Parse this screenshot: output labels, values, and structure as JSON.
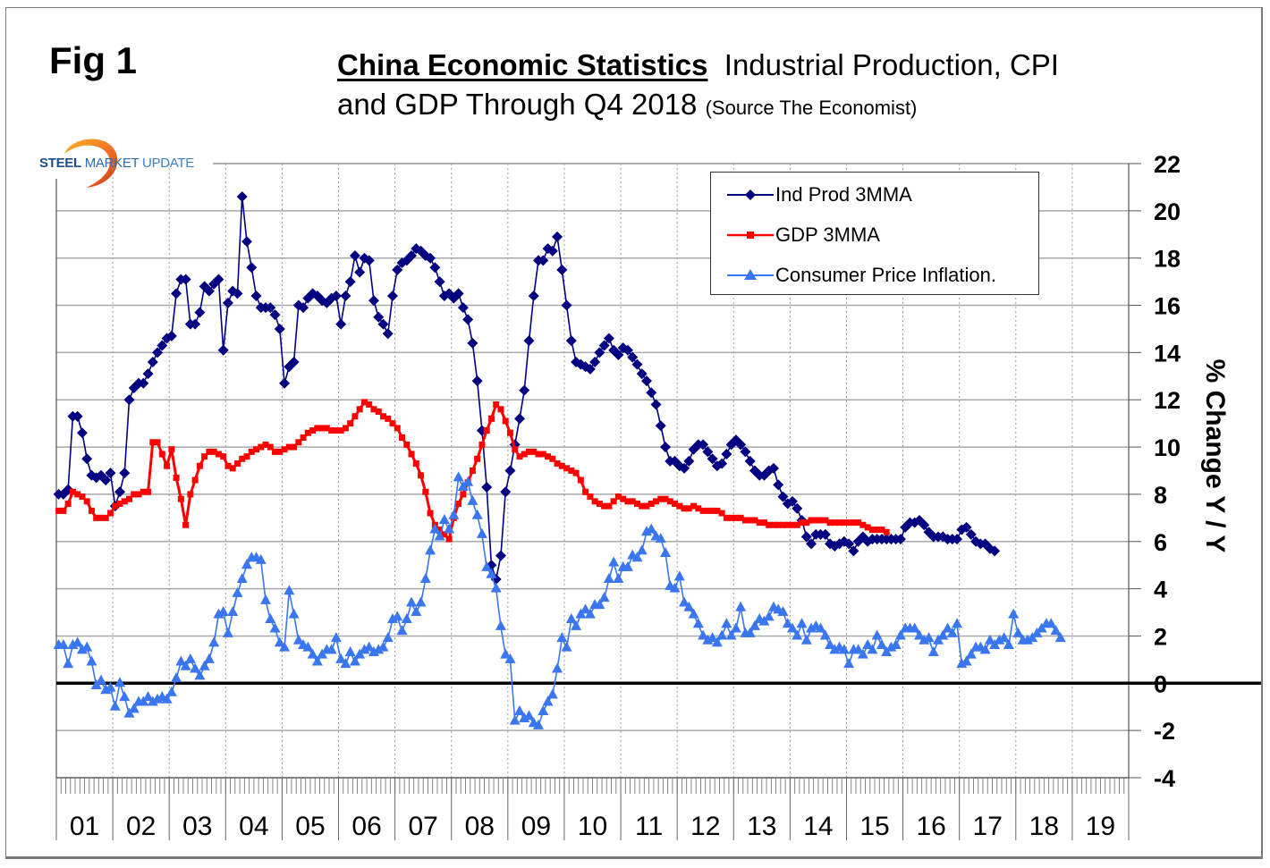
{
  "figure": {
    "fig_label": "Fig 1",
    "title_main": "China Economic Statistics",
    "title_rest": "Industrial Production, CPI",
    "title_line2": "and GDP Through Q4 2018",
    "title_source": "(Source The Economist)",
    "logo": {
      "word1": "STEEL",
      "word2": "MARKET",
      "word3": "UPDATE"
    }
  },
  "chart_data": {
    "type": "line",
    "title": "China Economic Statistics Industrial Production, CPI and GDP Through Q4 2018",
    "xlabel": "",
    "ylabel": "% Change Y / Y",
    "ylim": [
      -4,
      22
    ],
    "yticks": [
      22,
      20,
      18,
      16,
      14,
      12,
      10,
      8,
      6,
      4,
      2,
      0,
      -2,
      -4
    ],
    "x_categories": [
      "01",
      "02",
      "03",
      "04",
      "05",
      "06",
      "07",
      "08",
      "09",
      "10",
      "11",
      "12",
      "13",
      "14",
      "15",
      "16",
      "17",
      "18",
      "19"
    ],
    "x_start": "2001-01",
    "x_frequency": "monthly",
    "grid": "horizontal solid, vertical dotted per year",
    "legend_position": "top-right",
    "colors": {
      "ind_prod": "#000080",
      "gdp": "#ff0000",
      "cpi": "#3a76f0"
    },
    "series": [
      {
        "name": "Ind Prod 3MMA",
        "marker": "diamond",
        "values": [
          8.0,
          8.0,
          8.2,
          11.3,
          11.3,
          10.6,
          9.5,
          8.8,
          8.7,
          8.8,
          8.6,
          8.9,
          7.5,
          8.1,
          8.9,
          12.0,
          12.5,
          12.7,
          12.7,
          13.1,
          13.6,
          14.0,
          14.3,
          14.6,
          14.7,
          16.5,
          17.1,
          17.1,
          15.2,
          15.2,
          15.7,
          16.8,
          16.6,
          16.9,
          17.1,
          14.1,
          16.1,
          16.6,
          16.5,
          20.6,
          18.7,
          17.6,
          16.4,
          15.9,
          15.9,
          15.9,
          15.6,
          15.0,
          12.7,
          13.4,
          13.6,
          16.0,
          15.9,
          16.3,
          16.5,
          16.4,
          16.2,
          16.1,
          16.3,
          16.4,
          15.2,
          16.4,
          17.0,
          18.1,
          17.4,
          18.0,
          17.9,
          16.2,
          15.5,
          15.2,
          14.8,
          16.4,
          17.5,
          17.8,
          17.9,
          18.1,
          18.4,
          18.3,
          18.1,
          18.0,
          17.6,
          17.0,
          16.4,
          16.5,
          16.3,
          16.5,
          15.9,
          15.4,
          14.4,
          12.8,
          10.7,
          8.3,
          5.0,
          4.4,
          5.4,
          8.1,
          9.0,
          10.1,
          11.2,
          12.4,
          14.5,
          16.4,
          17.9,
          17.9,
          18.4,
          18.3,
          18.9,
          17.5,
          16.0,
          14.5,
          13.6,
          13.5,
          13.4,
          13.3,
          13.6,
          14.0,
          14.3,
          14.6,
          14.1,
          13.9,
          14.2,
          14.1,
          13.8,
          13.5,
          13.1,
          12.8,
          12.3,
          11.8,
          10.9,
          10.0,
          9.4,
          9.4,
          9.2,
          9.1,
          9.4,
          9.9,
          10.1,
          10.1,
          9.8,
          9.5,
          9.2,
          9.3,
          9.7,
          10.1,
          10.3,
          10.1,
          9.8,
          9.4,
          9.0,
          8.8,
          8.8,
          9.0,
          9.1,
          8.4,
          7.9,
          7.6,
          7.7,
          7.4,
          6.9,
          6.2,
          5.9,
          6.3,
          6.3,
          6.3,
          5.9,
          5.8,
          5.9,
          6.0,
          5.9,
          5.6,
          6.0,
          6.2,
          6.0,
          6.1,
          6.1,
          6.1,
          6.1,
          6.1,
          6.1,
          6.1,
          6.6,
          6.8,
          6.8,
          6.9,
          6.7,
          6.4,
          6.2,
          6.2,
          6.2,
          6.1,
          6.1,
          6.1,
          6.5,
          6.6,
          6.3,
          6.0,
          5.9,
          5.9,
          5.7,
          5.6
        ]
      },
      {
        "name": "GDP 3MMA",
        "marker": "square",
        "values": [
          7.3,
          7.3,
          7.6,
          8.1,
          8.0,
          7.9,
          7.7,
          7.3,
          7.0,
          7.0,
          7.0,
          7.2,
          7.5,
          7.6,
          7.7,
          7.8,
          8.0,
          8.0,
          8.1,
          8.1,
          10.2,
          10.2,
          9.7,
          9.2,
          9.9,
          8.7,
          7.8,
          6.7,
          8.0,
          8.6,
          9.2,
          9.6,
          9.8,
          9.8,
          9.7,
          9.6,
          9.2,
          9.1,
          9.3,
          9.5,
          9.6,
          9.8,
          9.9,
          10.0,
          10.1,
          10.0,
          9.8,
          9.8,
          9.9,
          10.0,
          10.0,
          10.2,
          10.4,
          10.6,
          10.7,
          10.8,
          10.8,
          10.8,
          10.7,
          10.7,
          10.7,
          10.8,
          11.0,
          11.3,
          11.6,
          11.9,
          11.8,
          11.6,
          11.5,
          11.3,
          11.2,
          11.0,
          10.8,
          10.4,
          10.1,
          9.7,
          9.3,
          8.8,
          8.1,
          7.2,
          6.7,
          6.5,
          6.3,
          6.1,
          7.0,
          7.6,
          8.0,
          8.5,
          9.0,
          9.5,
          10.1,
          10.7,
          11.2,
          11.8,
          11.6,
          11.1,
          10.6,
          9.9,
          9.6,
          9.7,
          9.8,
          9.8,
          9.7,
          9.7,
          9.6,
          9.5,
          9.3,
          9.2,
          9.1,
          9.0,
          8.9,
          8.6,
          8.1,
          7.9,
          7.7,
          7.6,
          7.5,
          7.5,
          7.7,
          7.9,
          7.8,
          7.7,
          7.7,
          7.6,
          7.5,
          7.5,
          7.6,
          7.7,
          7.8,
          7.8,
          7.7,
          7.6,
          7.5,
          7.4,
          7.4,
          7.5,
          7.4,
          7.3,
          7.3,
          7.3,
          7.3,
          7.2,
          7.0,
          7.0,
          7.0,
          7.0,
          6.9,
          6.9,
          6.9,
          6.8,
          6.8,
          6.7,
          6.7,
          6.7,
          6.7,
          6.7,
          6.7,
          6.7,
          6.8,
          6.8,
          6.9,
          6.9,
          6.9,
          6.9,
          6.8,
          6.8,
          6.8,
          6.8,
          6.8,
          6.8,
          6.8,
          6.7,
          6.6,
          6.5,
          6.5,
          6.5,
          6.4
        ]
      },
      {
        "name": "Consumer Price Inflation.",
        "marker": "triangle",
        "values": [
          1.6,
          1.6,
          0.8,
          1.6,
          1.7,
          1.4,
          1.5,
          0.9,
          -0.1,
          0.1,
          -0.3,
          -0.2,
          -1.0,
          0.0,
          -0.6,
          -1.3,
          -1.1,
          -0.8,
          -0.8,
          -0.6,
          -0.8,
          -0.7,
          -0.6,
          -0.7,
          -0.4,
          0.2,
          0.9,
          0.7,
          1.0,
          0.6,
          0.3,
          0.7,
          1.0,
          1.7,
          2.9,
          3.0,
          2.1,
          3.0,
          3.8,
          4.4,
          5.0,
          5.3,
          5.3,
          5.2,
          3.5,
          2.7,
          2.3,
          1.7,
          1.5,
          3.9,
          2.9,
          1.8,
          1.6,
          1.5,
          1.2,
          0.9,
          1.2,
          1.4,
          1.4,
          1.9,
          1.0,
          0.8,
          1.3,
          0.9,
          1.2,
          1.4,
          1.5,
          1.3,
          1.4,
          1.5,
          1.9,
          2.7,
          2.8,
          2.2,
          2.7,
          3.4,
          3.0,
          3.4,
          4.4,
          5.6,
          6.5,
          6.2,
          6.9,
          6.5,
          7.1,
          8.7,
          8.3,
          8.5,
          7.7,
          7.1,
          6.3,
          4.9,
          4.6,
          4.0,
          2.4,
          1.2,
          1.0,
          -1.6,
          -1.2,
          -1.5,
          -1.4,
          -1.7,
          -1.8,
          -1.2,
          -0.8,
          -0.5,
          0.6,
          1.9,
          1.5,
          2.7,
          2.4,
          2.9,
          3.1,
          2.9,
          3.3,
          3.3,
          3.6,
          4.4,
          5.1,
          4.4,
          4.9,
          4.9,
          5.4,
          5.3,
          5.6,
          6.4,
          6.5,
          6.2,
          6.1,
          5.5,
          4.1,
          4.0,
          4.5,
          3.4,
          3.2,
          2.9,
          2.5,
          2.0,
          1.8,
          1.9,
          1.7,
          2.0,
          2.5,
          2.0,
          2.3,
          3.2,
          2.1,
          2.1,
          2.4,
          2.7,
          2.6,
          2.8,
          3.2,
          3.1,
          3.0,
          2.5,
          2.3,
          2.0,
          2.5,
          1.8,
          2.3,
          2.4,
          2.3,
          2.0,
          1.6,
          1.4,
          1.5,
          1.4,
          0.8,
          1.4,
          1.4,
          1.2,
          1.6,
          1.4,
          2.0,
          1.6,
          1.3,
          1.5,
          1.6,
          2.0,
          2.3,
          2.3,
          2.3,
          2.0,
          1.8,
          1.9,
          1.3,
          1.8,
          2.0,
          2.3,
          2.1,
          2.5,
          0.8,
          0.9,
          1.2,
          1.5,
          1.5,
          1.4,
          1.8,
          1.6,
          1.8,
          1.9,
          1.6,
          2.9,
          2.1,
          1.8,
          1.8,
          1.9,
          2.1,
          2.3,
          2.5,
          2.5,
          2.2,
          1.9
        ]
      }
    ]
  }
}
